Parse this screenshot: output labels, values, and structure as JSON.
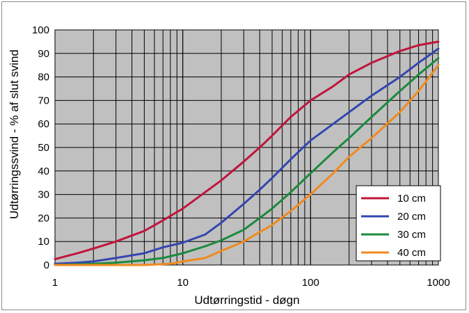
{
  "chart_data": {
    "type": "line",
    "title": "",
    "xlabel": "Udtørringstid - døgn",
    "ylabel": "Udtørringssvind - % af slut svind",
    "x_scale": "log",
    "xlim": [
      1,
      1000
    ],
    "ylim": [
      0,
      100
    ],
    "x_ticks": [
      "1",
      "10",
      "100",
      "1000"
    ],
    "y_ticks": [
      "0",
      "10",
      "20",
      "30",
      "40",
      "50",
      "60",
      "70",
      "80",
      "90",
      "100"
    ],
    "grid": true,
    "plot_background": "#c0c0c0",
    "legend_position": "lower-right",
    "series": [
      {
        "name": "10 cm",
        "color": "#c0143c",
        "x": [
          1,
          1.5,
          2,
          3,
          5,
          7,
          10,
          15,
          20,
          30,
          40,
          50,
          70,
          100,
          150,
          200,
          300,
          500,
          700,
          1000
        ],
        "y": [
          2.5,
          5,
          7,
          10,
          14.5,
          19,
          24,
          31,
          36,
          44,
          50,
          55,
          63,
          70,
          76,
          81,
          86,
          91,
          93.5,
          95
        ]
      },
      {
        "name": "20 cm",
        "color": "#3346b0",
        "x": [
          1,
          1.5,
          2,
          3,
          5,
          7,
          10,
          15,
          20,
          30,
          40,
          50,
          70,
          100,
          150,
          200,
          300,
          500,
          700,
          1000
        ],
        "y": [
          0.5,
          1,
          1.5,
          3,
          5,
          7.5,
          9.5,
          13,
          18,
          26,
          32,
          37,
          45,
          53,
          60,
          65,
          72,
          80,
          86,
          92
        ]
      },
      {
        "name": "30 cm",
        "color": "#1a8a3c",
        "x": [
          1,
          2,
          3,
          5,
          7,
          10,
          15,
          20,
          30,
          40,
          50,
          70,
          100,
          150,
          200,
          300,
          500,
          700,
          1000
        ],
        "y": [
          0,
          0.5,
          1,
          2,
          3,
          5,
          8,
          10.5,
          15,
          20,
          24,
          31,
          39,
          48,
          54,
          63,
          74,
          81,
          88
        ]
      },
      {
        "name": "40 cm",
        "color": "#f08a1e",
        "x": [
          1,
          3,
          5,
          8,
          10,
          15,
          20,
          30,
          40,
          50,
          70,
          100,
          150,
          200,
          300,
          500,
          700,
          1000
        ],
        "y": [
          0,
          0,
          0,
          0.5,
          1.5,
          3,
          6,
          10,
          14,
          17,
          23,
          30,
          39,
          46,
          54,
          65,
          74,
          85
        ]
      }
    ]
  }
}
